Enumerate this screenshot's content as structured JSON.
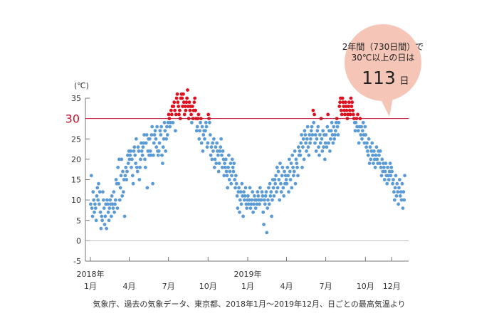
{
  "colors": {
    "below30": "#5b9bd5",
    "above30": "#e0101e",
    "threshold_line": "#c8102e",
    "bubble_fill": "#f5c6b8",
    "axis": "#777777"
  },
  "callout": {
    "line1": "2年間（730日間）で",
    "line2": "30℃以上の日は",
    "number": "113",
    "unit": "日"
  },
  "source_note": "気象庁、過去の気象データ、東京都、2018年1月〜2019年12月、日ごとの最高気温より",
  "chart_data": {
    "type": "scatter",
    "title": "",
    "ylabel": "(℃)",
    "ylim": [
      -5,
      35
    ],
    "y_ticks": [
      "-5",
      "0",
      "5",
      "10",
      "15",
      "20",
      "25",
      "30",
      "35"
    ],
    "threshold": {
      "value": 30,
      "label": "30"
    },
    "x_range_days": [
      0,
      730
    ],
    "x_ticks": [
      {
        "day": 0,
        "line1": "2018年",
        "line2": "1月"
      },
      {
        "day": 90,
        "line1": "",
        "line2": "4月"
      },
      {
        "day": 181,
        "line1": "",
        "line2": "7月"
      },
      {
        "day": 273,
        "line1": "",
        "line2": "10月"
      },
      {
        "day": 365,
        "line1": "2019年",
        "line2": "1月"
      },
      {
        "day": 455,
        "line1": "",
        "line2": "4月"
      },
      {
        "day": 546,
        "line1": "",
        "line2": "7月"
      },
      {
        "day": 638,
        "line1": "",
        "line2": "10月"
      },
      {
        "day": 699,
        "line1": "",
        "line2": "12月"
      }
    ],
    "series": [
      {
        "period": "2018",
        "monthly_max_temp": [
          [
            9,
            16,
            8,
            6,
            12,
            10,
            7,
            9,
            8,
            5,
            11,
            13,
            10,
            14,
            9,
            12,
            7,
            3,
            6,
            5,
            12,
            10
          ],
          [
            8,
            4,
            6,
            9,
            3,
            10,
            9,
            7,
            5,
            8,
            10,
            9,
            6,
            11,
            9,
            8,
            12,
            7,
            9,
            10
          ],
          [
            15,
            14,
            8,
            18,
            14,
            20,
            10,
            13,
            16,
            20,
            11,
            17,
            12,
            15,
            6,
            16,
            18,
            15,
            17,
            21,
            19,
            22
          ],
          [
            20,
            21,
            22,
            18,
            20,
            16,
            14,
            22,
            23,
            21,
            19,
            25,
            18,
            17,
            23,
            22,
            15,
            18,
            20,
            24,
            22
          ],
          [
            21,
            23,
            24,
            26,
            20,
            18,
            24,
            26,
            13,
            22,
            25,
            21,
            25,
            22,
            21,
            26,
            28,
            14,
            21,
            24,
            26,
            27
          ],
          [
            25,
            23,
            28,
            22,
            21,
            22,
            24,
            27,
            26,
            28,
            21,
            19,
            23,
            25,
            29,
            27,
            22,
            25,
            28,
            26,
            29
          ],
          [
            31,
            30,
            28,
            29,
            32,
            31,
            33,
            29,
            33,
            34,
            32,
            27,
            31,
            35,
            36,
            34,
            33,
            31,
            32,
            30,
            35,
            36
          ],
          [
            35,
            33,
            36,
            34,
            31,
            33,
            32,
            34,
            35,
            37,
            33,
            30,
            34,
            32,
            33,
            31,
            29,
            33,
            30,
            32,
            34,
            35
          ],
          [
            32,
            30,
            27,
            28,
            30,
            31,
            25,
            27,
            29,
            30,
            24,
            28,
            22,
            26,
            27,
            25,
            27,
            29,
            28,
            23,
            24
          ],
          [
            31,
            30,
            29,
            26,
            21,
            23,
            20,
            24,
            22,
            25,
            18,
            20,
            23,
            19,
            24,
            22,
            21,
            17,
            19,
            22,
            23,
            25
          ],
          [
            21,
            18,
            22,
            20,
            16,
            19,
            18,
            20,
            17,
            16,
            13,
            18,
            21,
            15,
            17,
            19,
            14,
            16,
            20,
            18,
            17,
            19
          ],
          [
            15,
            13,
            16,
            14,
            11,
            8,
            12,
            13,
            7,
            10,
            12,
            9,
            14,
            11,
            6,
            12,
            10,
            11,
            13,
            9,
            8,
            10
          ]
        ]
      },
      {
        "period": "2019",
        "monthly_max_temp": [
          [
            11,
            9,
            10,
            13,
            8,
            9,
            10,
            12,
            7,
            9,
            11,
            10,
            8,
            10,
            9,
            12,
            11,
            10,
            9,
            13,
            10
          ],
          [
            10,
            12,
            11,
            7,
            4,
            10,
            9,
            11,
            12,
            2,
            8,
            10,
            13,
            9,
            14,
            11,
            12,
            6,
            10,
            15
          ],
          [
            13,
            11,
            15,
            14,
            16,
            12,
            18,
            13,
            17,
            15,
            10,
            19,
            14,
            12,
            16,
            18,
            13,
            11,
            17,
            14,
            16,
            15
          ],
          [
            14,
            18,
            16,
            12,
            20,
            17,
            15,
            19,
            13,
            21,
            18,
            16,
            17,
            22,
            14,
            20,
            19,
            18,
            16,
            23,
            21
          ],
          [
            22,
            21,
            24,
            26,
            18,
            23,
            25,
            20,
            27,
            26,
            24,
            22,
            25,
            28,
            23,
            21,
            26,
            24,
            25,
            27,
            28,
            26
          ],
          [
            32,
            29,
            31,
            24,
            26,
            22,
            25,
            27,
            28,
            23,
            21,
            26,
            24,
            30,
            25,
            22,
            27,
            23,
            26,
            20,
            24
          ],
          [
            26,
            23,
            28,
            31,
            24,
            27,
            22,
            25,
            27,
            29,
            26,
            24,
            28,
            25,
            26,
            27,
            29,
            30,
            28,
            26,
            29
          ],
          [
            33,
            34,
            35,
            32,
            31,
            35,
            34,
            33,
            32,
            31,
            34,
            33,
            32,
            30,
            31,
            33,
            34,
            32,
            31,
            35,
            33,
            34
          ],
          [
            32,
            31,
            30,
            29,
            27,
            29,
            30,
            28,
            31,
            27,
            24,
            28,
            30,
            26,
            28,
            25,
            27,
            29,
            26,
            24,
            28
          ],
          [
            26,
            23,
            24,
            22,
            21,
            25,
            19,
            23,
            20,
            22,
            24,
            21,
            19,
            22,
            20,
            18,
            21,
            23,
            20,
            19,
            22
          ],
          [
            21,
            19,
            22,
            18,
            16,
            20,
            17,
            19,
            18,
            15,
            17,
            19,
            16,
            14,
            18,
            16,
            15,
            17,
            19,
            16,
            18
          ],
          [
            17,
            14,
            15,
            12,
            10,
            13,
            16,
            11,
            14,
            12,
            9,
            13,
            15,
            11,
            12,
            10,
            14,
            8,
            12,
            10,
            16
          ]
        ]
      }
    ]
  }
}
